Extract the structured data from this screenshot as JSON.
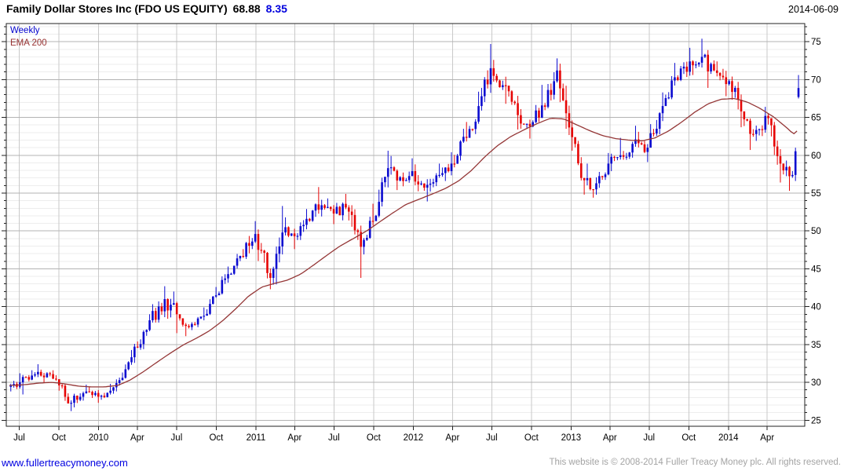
{
  "header": {
    "title": "Family Dollar Stores Inc (FDO US EQUITY)",
    "last_price": "68.88",
    "change": "8.35",
    "date": "2014-06-09"
  },
  "legend": [
    {
      "label": "Weekly",
      "color": "#0000cc"
    },
    {
      "label": "EMA 200",
      "color": "#993333"
    }
  ],
  "footer": {
    "left": "www.fullertreacymoney.com",
    "right": "This website is © 2008-2014 Fuller Treacy Money plc. All rights reserved."
  },
  "colors": {
    "up": "#0b0bd0",
    "down": "#e60505",
    "ema": "#943636",
    "grid_minor": "#ededed",
    "grid_major": "#b3b3b3",
    "grid_vert": "#c9c9c9",
    "axis": "#222222",
    "text": "#000000"
  },
  "chart_data": {
    "type": "candlestick",
    "timeframe": "weekly",
    "title": "Family Dollar Stores Inc (FDO US EQUITY)",
    "last_close": 68.88,
    "change": 8.35,
    "as_of_date": "2014-06-09",
    "legend_position": "top-left",
    "ylim": [
      24.2,
      77.4
    ],
    "y_ticks": [
      25,
      30,
      35,
      40,
      45,
      50,
      55,
      60,
      65,
      70,
      75
    ],
    "y_minor_step": 1,
    "time_range": [
      "2009-06-01",
      "2014-06-27"
    ],
    "start_week": "2009-06-08",
    "end_week": "2014-06-09",
    "x_ticks": [
      {
        "label": "Jul",
        "date": "2009-07-01"
      },
      {
        "label": "Oct",
        "date": "2009-10-01"
      },
      {
        "label": "2010",
        "date": "2010-01-01"
      },
      {
        "label": "Apr",
        "date": "2010-04-01"
      },
      {
        "label": "Jul",
        "date": "2010-07-01"
      },
      {
        "label": "Oct",
        "date": "2010-10-01"
      },
      {
        "label": "2011",
        "date": "2011-01-01"
      },
      {
        "label": "Apr",
        "date": "2011-04-01"
      },
      {
        "label": "Jul",
        "date": "2011-07-01"
      },
      {
        "label": "Oct",
        "date": "2011-10-01"
      },
      {
        "label": "2012",
        "date": "2012-01-01"
      },
      {
        "label": "Apr",
        "date": "2012-04-01"
      },
      {
        "label": "Jul",
        "date": "2012-07-01"
      },
      {
        "label": "Oct",
        "date": "2012-10-01"
      },
      {
        "label": "2013",
        "date": "2013-01-01"
      },
      {
        "label": "Apr",
        "date": "2013-04-01"
      },
      {
        "label": "Jul",
        "date": "2013-07-01"
      },
      {
        "label": "Oct",
        "date": "2013-10-01"
      },
      {
        "label": "2014",
        "date": "2014-01-01"
      },
      {
        "label": "Apr",
        "date": "2014-04-01"
      }
    ],
    "series": [
      {
        "name": "Weekly",
        "type": "candlestick",
        "up_color": "#0b0bd0",
        "down_color": "#e60505"
      },
      {
        "name": "EMA 200",
        "type": "line",
        "color": "#943636"
      }
    ],
    "monthly": [
      {
        "m": "2009-06",
        "c": 30.0,
        "h": 31.2,
        "l": 28.8
      },
      {
        "m": "2009-07",
        "c": 30.9,
        "h": 31.6,
        "l": 28.4
      },
      {
        "m": "2009-08",
        "c": 31.2,
        "h": 32.4,
        "l": 30.0
      },
      {
        "m": "2009-09",
        "c": 29.6,
        "h": 31.6,
        "l": 28.9
      },
      {
        "m": "2009-10",
        "c": 27.3,
        "h": 29.8,
        "l": 26.2
      },
      {
        "m": "2009-11",
        "c": 28.8,
        "h": 29.7,
        "l": 26.7
      },
      {
        "m": "2009-12",
        "c": 28.1,
        "h": 29.4,
        "l": 27.3
      },
      {
        "m": "2010-01",
        "c": 28.9,
        "h": 29.8,
        "l": 27.7
      },
      {
        "m": "2010-02",
        "c": 30.6,
        "h": 31.3,
        "l": 28.5
      },
      {
        "m": "2010-03",
        "c": 34.6,
        "h": 35.4,
        "l": 30.5
      },
      {
        "m": "2010-04",
        "c": 38.2,
        "h": 39.0,
        "l": 34.3
      },
      {
        "m": "2010-05",
        "c": 41.0,
        "h": 42.7,
        "l": 37.9
      },
      {
        "m": "2010-06",
        "c": 39.0,
        "h": 42.0,
        "l": 36.5
      },
      {
        "m": "2010-07",
        "c": 37.3,
        "h": 38.8,
        "l": 36.1
      },
      {
        "m": "2010-08",
        "c": 38.8,
        "h": 39.9,
        "l": 36.9
      },
      {
        "m": "2010-09",
        "c": 41.5,
        "h": 42.6,
        "l": 38.9
      },
      {
        "m": "2010-10",
        "c": 44.3,
        "h": 45.3,
        "l": 41.6
      },
      {
        "m": "2010-11",
        "c": 46.6,
        "h": 47.6,
        "l": 44.2
      },
      {
        "m": "2010-12",
        "c": 49.6,
        "h": 51.3,
        "l": 46.3
      },
      {
        "m": "2011-01",
        "c": 43.8,
        "h": 50.2,
        "l": 42.3
      },
      {
        "m": "2011-02",
        "c": 49.8,
        "h": 53.3,
        "l": 42.9
      },
      {
        "m": "2011-03",
        "c": 49.3,
        "h": 51.8,
        "l": 47.6
      },
      {
        "m": "2011-04",
        "c": 51.6,
        "h": 52.9,
        "l": 48.8
      },
      {
        "m": "2011-05",
        "c": 53.4,
        "h": 55.8,
        "l": 51.2
      },
      {
        "m": "2011-06",
        "c": 52.3,
        "h": 54.3,
        "l": 50.9
      },
      {
        "m": "2011-07",
        "c": 53.1,
        "h": 54.9,
        "l": 51.4
      },
      {
        "m": "2011-08",
        "c": 47.9,
        "h": 53.4,
        "l": 43.8
      },
      {
        "m": "2011-09",
        "c": 51.3,
        "h": 53.6,
        "l": 46.9
      },
      {
        "m": "2011-10",
        "c": 58.3,
        "h": 60.6,
        "l": 51.8
      },
      {
        "m": "2011-11",
        "c": 57.1,
        "h": 59.9,
        "l": 55.4
      },
      {
        "m": "2011-12",
        "c": 57.9,
        "h": 59.6,
        "l": 55.9
      },
      {
        "m": "2012-01",
        "c": 56.1,
        "h": 58.8,
        "l": 53.9
      },
      {
        "m": "2012-02",
        "c": 57.4,
        "h": 58.9,
        "l": 55.2
      },
      {
        "m": "2012-03",
        "c": 58.9,
        "h": 60.4,
        "l": 56.6
      },
      {
        "m": "2012-04",
        "c": 62.3,
        "h": 64.4,
        "l": 58.4
      },
      {
        "m": "2012-05",
        "c": 66.5,
        "h": 68.4,
        "l": 62.8
      },
      {
        "m": "2012-06",
        "c": 71.5,
        "h": 74.7,
        "l": 65.9
      },
      {
        "m": "2012-07",
        "c": 69.2,
        "h": 72.6,
        "l": 66.8
      },
      {
        "m": "2012-08",
        "c": 65.3,
        "h": 68.6,
        "l": 63.4
      },
      {
        "m": "2012-09",
        "c": 63.8,
        "h": 66.1,
        "l": 62.2
      },
      {
        "m": "2012-10",
        "c": 66.4,
        "h": 69.3,
        "l": 63.7
      },
      {
        "m": "2012-11",
        "c": 71.2,
        "h": 72.8,
        "l": 66.2
      },
      {
        "m": "2012-12",
        "c": 62.4,
        "h": 72.1,
        "l": 60.6
      },
      {
        "m": "2013-01",
        "c": 56.7,
        "h": 61.9,
        "l": 54.8
      },
      {
        "m": "2013-02",
        "c": 56.3,
        "h": 58.9,
        "l": 54.4
      },
      {
        "m": "2013-03",
        "c": 58.9,
        "h": 60.3,
        "l": 55.7
      },
      {
        "m": "2013-04",
        "c": 59.8,
        "h": 62.3,
        "l": 57.9
      },
      {
        "m": "2013-05",
        "c": 62.1,
        "h": 63.9,
        "l": 59.4
      },
      {
        "m": "2013-06",
        "c": 61.0,
        "h": 63.1,
        "l": 59.1
      },
      {
        "m": "2013-07",
        "c": 66.5,
        "h": 68.3,
        "l": 61.2
      },
      {
        "m": "2013-08",
        "c": 70.3,
        "h": 72.2,
        "l": 67.4
      },
      {
        "m": "2013-09",
        "c": 72.4,
        "h": 74.2,
        "l": 69.8
      },
      {
        "m": "2013-10",
        "c": 73.0,
        "h": 75.4,
        "l": 70.6
      },
      {
        "m": "2013-11",
        "c": 71.2,
        "h": 73.9,
        "l": 68.9
      },
      {
        "m": "2013-12",
        "c": 69.8,
        "h": 72.4,
        "l": 67.8
      },
      {
        "m": "2014-01",
        "c": 65.8,
        "h": 70.4,
        "l": 63.7
      },
      {
        "m": "2014-02",
        "c": 62.8,
        "h": 65.3,
        "l": 60.7
      },
      {
        "m": "2014-03",
        "c": 64.9,
        "h": 66.4,
        "l": 61.9
      },
      {
        "m": "2014-04",
        "c": 58.9,
        "h": 64.8,
        "l": 56.4
      },
      {
        "m": "2014-05",
        "c": 57.4,
        "h": 59.3,
        "l": 55.3
      },
      {
        "m": "2014-06",
        "c": 60.5,
        "h": 61.0,
        "l": 56.6
      }
    ],
    "final_weeks": [
      {
        "date": "2014-06-02",
        "o": 57.4,
        "h": 61.0,
        "l": 56.6,
        "c": 60.53
      },
      {
        "date": "2014-06-09",
        "o": 67.7,
        "h": 70.6,
        "l": 67.5,
        "c": 68.88
      }
    ],
    "ema": [
      [
        "2009-06-15",
        29.6
      ],
      [
        "2009-07-15",
        29.7
      ],
      [
        "2009-08-15",
        29.9
      ],
      [
        "2009-09-15",
        30.0
      ],
      [
        "2009-10-15",
        29.8
      ],
      [
        "2009-11-15",
        29.5
      ],
      [
        "2009-12-15",
        29.4
      ],
      [
        "2010-01-15",
        29.4
      ],
      [
        "2010-02-15",
        29.6
      ],
      [
        "2010-03-15",
        30.3
      ],
      [
        "2010-04-15",
        31.4
      ],
      [
        "2010-05-15",
        32.6
      ],
      [
        "2010-06-15",
        33.8
      ],
      [
        "2010-07-15",
        34.9
      ],
      [
        "2010-08-15",
        35.8
      ],
      [
        "2010-09-15",
        36.8
      ],
      [
        "2010-10-15",
        38.1
      ],
      [
        "2010-11-15",
        39.7
      ],
      [
        "2010-12-15",
        41.4
      ],
      [
        "2011-01-15",
        42.6
      ],
      [
        "2011-02-15",
        43.1
      ],
      [
        "2011-03-15",
        43.5
      ],
      [
        "2011-04-15",
        44.3
      ],
      [
        "2011-05-15",
        45.5
      ],
      [
        "2011-06-15",
        46.8
      ],
      [
        "2011-07-15",
        48.0
      ],
      [
        "2011-08-15",
        49.0
      ],
      [
        "2011-09-15",
        50.0
      ],
      [
        "2011-10-15",
        51.2
      ],
      [
        "2011-11-15",
        52.4
      ],
      [
        "2011-12-15",
        53.5
      ],
      [
        "2012-01-15",
        54.2
      ],
      [
        "2012-02-15",
        54.9
      ],
      [
        "2012-03-15",
        55.6
      ],
      [
        "2012-04-15",
        56.6
      ],
      [
        "2012-05-15",
        58.0
      ],
      [
        "2012-06-15",
        59.8
      ],
      [
        "2012-07-15",
        61.3
      ],
      [
        "2012-08-15",
        62.5
      ],
      [
        "2012-09-15",
        63.4
      ],
      [
        "2012-10-15",
        64.2
      ],
      [
        "2012-11-15",
        64.9
      ],
      [
        "2012-12-15",
        64.8
      ],
      [
        "2013-01-15",
        64.0
      ],
      [
        "2013-02-15",
        63.2
      ],
      [
        "2013-03-15",
        62.6
      ],
      [
        "2013-04-15",
        62.2
      ],
      [
        "2013-05-15",
        62.0
      ],
      [
        "2013-06-15",
        61.9
      ],
      [
        "2013-07-15",
        62.3
      ],
      [
        "2013-08-15",
        63.2
      ],
      [
        "2013-09-15",
        64.4
      ],
      [
        "2013-10-15",
        65.7
      ],
      [
        "2013-11-15",
        66.8
      ],
      [
        "2013-12-15",
        67.4
      ],
      [
        "2014-01-15",
        67.5
      ],
      [
        "2014-02-15",
        67.0
      ],
      [
        "2014-03-15",
        66.2
      ],
      [
        "2014-04-15",
        65.1
      ],
      [
        "2014-05-15",
        63.7
      ],
      [
        "2014-06-01",
        62.8
      ],
      [
        "2014-06-09",
        63.2
      ]
    ]
  }
}
